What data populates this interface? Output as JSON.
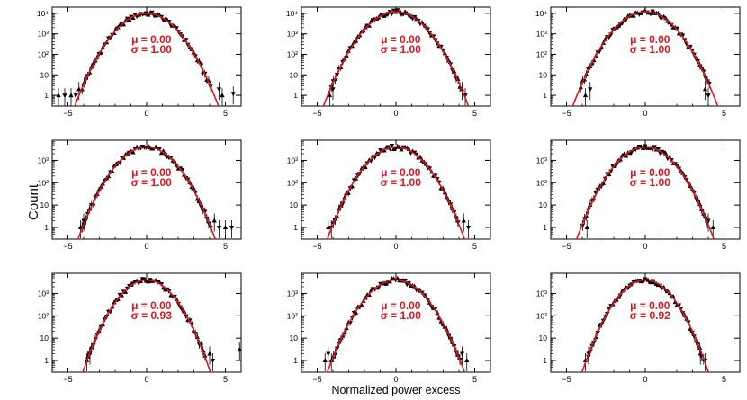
{
  "colors": {
    "data": "#000000",
    "fit": "#e0141e",
    "annotation": "#e0141e",
    "frame": "#000000"
  },
  "figure": {
    "ylabel": "Count",
    "xlabel": "Normalized power excess"
  },
  "chart_data": [
    {
      "type": "scatter",
      "ylim": [
        0.3,
        20000
      ],
      "xlim": [
        -6,
        6
      ],
      "log_y": true,
      "peak": 10000,
      "fit": {
        "mu": 0.0,
        "sigma": 1.0
      },
      "annotation": {
        "mu": "μ = 0.00",
        "sigma": "σ = 1.00"
      },
      "x_ticks": [
        {
          "v": -5,
          "label": "−5"
        },
        {
          "v": 0,
          "label": "0"
        },
        {
          "v": 5,
          "label": "5"
        }
      ],
      "y_ticks": [
        {
          "v": 1,
          "label": "1"
        },
        {
          "v": 10,
          "label": "10"
        },
        {
          "v": 100,
          "label": "10²"
        },
        {
          "v": 1000,
          "label": "10³"
        },
        {
          "v": 10000,
          "label": "10⁴"
        }
      ],
      "outliers": [
        [
          -5.6,
          1
        ],
        [
          -5.2,
          1
        ],
        [
          -4.8,
          1
        ],
        [
          -4.5,
          1
        ],
        [
          -4.3,
          2
        ],
        [
          4.6,
          2
        ],
        [
          4.8,
          1
        ],
        [
          5.5,
          1.2
        ]
      ]
    },
    {
      "type": "scatter",
      "ylim": [
        0.3,
        20000
      ],
      "xlim": [
        -6,
        6
      ],
      "log_y": true,
      "peak": 12000,
      "fit": {
        "mu": 0.0,
        "sigma": 1.0
      },
      "annotation": {
        "mu": "μ = 0.00",
        "sigma": "σ = 1.00"
      },
      "x_ticks": [
        {
          "v": -5,
          "label": "−5"
        },
        {
          "v": 0,
          "label": "0"
        },
        {
          "v": 5,
          "label": "5"
        }
      ],
      "y_ticks": [
        {
          "v": 1,
          "label": "1"
        },
        {
          "v": 10,
          "label": "10"
        },
        {
          "v": 100,
          "label": "10²"
        },
        {
          "v": 1000,
          "label": "10³"
        },
        {
          "v": 10000,
          "label": "10⁴"
        }
      ],
      "outliers": [
        [
          -4.2,
          1
        ],
        [
          -4.0,
          2
        ],
        [
          4.2,
          2
        ],
        [
          4.4,
          1
        ]
      ]
    },
    {
      "type": "scatter",
      "ylim": [
        0.3,
        20000
      ],
      "xlim": [
        -6,
        6
      ],
      "log_y": true,
      "peak": 12000,
      "fit": {
        "mu": 0.0,
        "sigma": 1.0
      },
      "annotation": {
        "mu": "μ = 0.00",
        "sigma": "σ = 1.00"
      },
      "x_ticks": [
        {
          "v": -5,
          "label": "−5"
        },
        {
          "v": 0,
          "label": "0"
        },
        {
          "v": 5,
          "label": "5"
        }
      ],
      "y_ticks": [
        {
          "v": 1,
          "label": "1"
        },
        {
          "v": 10,
          "label": "10"
        },
        {
          "v": 100,
          "label": "10²"
        },
        {
          "v": 1000,
          "label": "10³"
        },
        {
          "v": 10000,
          "label": "10⁴"
        }
      ],
      "outliers": [
        [
          -3.8,
          1
        ],
        [
          -3.5,
          2
        ],
        [
          3.8,
          2
        ],
        [
          4.0,
          1
        ]
      ]
    },
    {
      "type": "scatter",
      "ylim": [
        0.3,
        8000
      ],
      "xlim": [
        -6,
        6
      ],
      "log_y": true,
      "peak": 4000,
      "fit": {
        "mu": 0.0,
        "sigma": 1.0
      },
      "annotation": {
        "mu": "μ = 0.00",
        "sigma": "σ = 1.00"
      },
      "x_ticks": [
        {
          "v": -5,
          "label": "−5"
        },
        {
          "v": 0,
          "label": "0"
        },
        {
          "v": 5,
          "label": "5"
        }
      ],
      "y_ticks": [
        {
          "v": 1,
          "label": "1"
        },
        {
          "v": 10,
          "label": "10"
        },
        {
          "v": 100,
          "label": "10²"
        },
        {
          "v": 1000,
          "label": "10³"
        }
      ],
      "outliers": [
        [
          -4.2,
          1
        ],
        [
          -4.0,
          2
        ],
        [
          4.3,
          2
        ],
        [
          4.6,
          1
        ],
        [
          5.0,
          1
        ],
        [
          5.4,
          1
        ]
      ]
    },
    {
      "type": "scatter",
      "ylim": [
        0.3,
        8000
      ],
      "xlim": [
        -6,
        6
      ],
      "log_y": true,
      "peak": 4000,
      "fit": {
        "mu": 0.0,
        "sigma": 1.0
      },
      "annotation": {
        "mu": "μ = 0.00",
        "sigma": "σ = 1.00"
      },
      "x_ticks": [
        {
          "v": -5,
          "label": "−5"
        },
        {
          "v": 0,
          "label": "0"
        },
        {
          "v": 5,
          "label": "5"
        }
      ],
      "y_ticks": [
        {
          "v": 1,
          "label": "1"
        },
        {
          "v": 10,
          "label": "10"
        },
        {
          "v": 100,
          "label": "10²"
        },
        {
          "v": 1000,
          "label": "10³"
        }
      ],
      "outliers": [
        [
          -4.3,
          1
        ],
        [
          -4.1,
          1
        ],
        [
          4.3,
          2
        ],
        [
          4.6,
          1
        ]
      ]
    },
    {
      "type": "scatter",
      "ylim": [
        0.3,
        8000
      ],
      "xlim": [
        -6,
        6
      ],
      "log_y": true,
      "peak": 4000,
      "fit": {
        "mu": 0.0,
        "sigma": 1.0
      },
      "annotation": {
        "mu": "μ = 0.00",
        "sigma": "σ = 1.00"
      },
      "x_ticks": [
        {
          "v": -5,
          "label": "−5"
        },
        {
          "v": 0,
          "label": "0"
        },
        {
          "v": 5,
          "label": "5"
        }
      ],
      "y_ticks": [
        {
          "v": 1,
          "label": "1"
        },
        {
          "v": 10,
          "label": "10"
        },
        {
          "v": 100,
          "label": "10²"
        },
        {
          "v": 1000,
          "label": "10³"
        }
      ],
      "outliers": [
        [
          -3.7,
          1
        ],
        [
          4.0,
          2
        ],
        [
          4.3,
          1
        ]
      ]
    },
    {
      "type": "scatter",
      "ylim": [
        0.3,
        8000
      ],
      "xlim": [
        -6,
        6
      ],
      "log_y": true,
      "peak": 4000,
      "fit": {
        "mu": 0.0,
        "sigma": 0.93
      },
      "annotation": {
        "mu": "μ = 0.00",
        "sigma": "σ = 0.93"
      },
      "x_ticks": [
        {
          "v": -5,
          "label": "−5"
        },
        {
          "v": 0,
          "label": "0"
        },
        {
          "v": 5,
          "label": "5"
        }
      ],
      "y_ticks": [
        {
          "v": 1,
          "label": "1"
        },
        {
          "v": 10,
          "label": "10"
        },
        {
          "v": 100,
          "label": "10²"
        },
        {
          "v": 1000,
          "label": "10³"
        }
      ],
      "outliers": [
        [
          -3.8,
          1
        ],
        [
          -3.6,
          2
        ],
        [
          4.0,
          2
        ],
        [
          4.2,
          1
        ],
        [
          5.9,
          3
        ]
      ]
    },
    {
      "type": "scatter",
      "ylim": [
        0.3,
        8000
      ],
      "xlim": [
        -6,
        6
      ],
      "log_y": true,
      "peak": 4000,
      "fit": {
        "mu": 0.0,
        "sigma": 1.0
      },
      "annotation": {
        "mu": "μ = 0.00",
        "sigma": "σ = 1.00"
      },
      "x_ticks": [
        {
          "v": -5,
          "label": "−5"
        },
        {
          "v": 0,
          "label": "0"
        },
        {
          "v": 5,
          "label": "5"
        }
      ],
      "y_ticks": [
        {
          "v": 1,
          "label": "1"
        },
        {
          "v": 10,
          "label": "10"
        },
        {
          "v": 100,
          "label": "10²"
        },
        {
          "v": 1000,
          "label": "10³"
        }
      ],
      "outliers": [
        [
          -4.5,
          1
        ],
        [
          -4.3,
          2
        ],
        [
          -4.1,
          1
        ],
        [
          4.2,
          2
        ],
        [
          4.5,
          1
        ]
      ]
    },
    {
      "type": "scatter",
      "ylim": [
        0.3,
        8000
      ],
      "xlim": [
        -6,
        6
      ],
      "log_y": true,
      "peak": 4000,
      "fit": {
        "mu": 0.0,
        "sigma": 0.92
      },
      "annotation": {
        "mu": "μ = 0.00",
        "sigma": "σ = 0.92"
      },
      "x_ticks": [
        {
          "v": -5,
          "label": "−5"
        },
        {
          "v": 0,
          "label": "0"
        },
        {
          "v": 5,
          "label": "5"
        }
      ],
      "y_ticks": [
        {
          "v": 1,
          "label": "1"
        },
        {
          "v": 10,
          "label": "10"
        },
        {
          "v": 100,
          "label": "10²"
        },
        {
          "v": 1000,
          "label": "10³"
        }
      ],
      "outliers": [
        [
          -3.8,
          1
        ],
        [
          -3.6,
          2
        ],
        [
          3.5,
          2
        ],
        [
          3.8,
          1
        ]
      ]
    }
  ]
}
